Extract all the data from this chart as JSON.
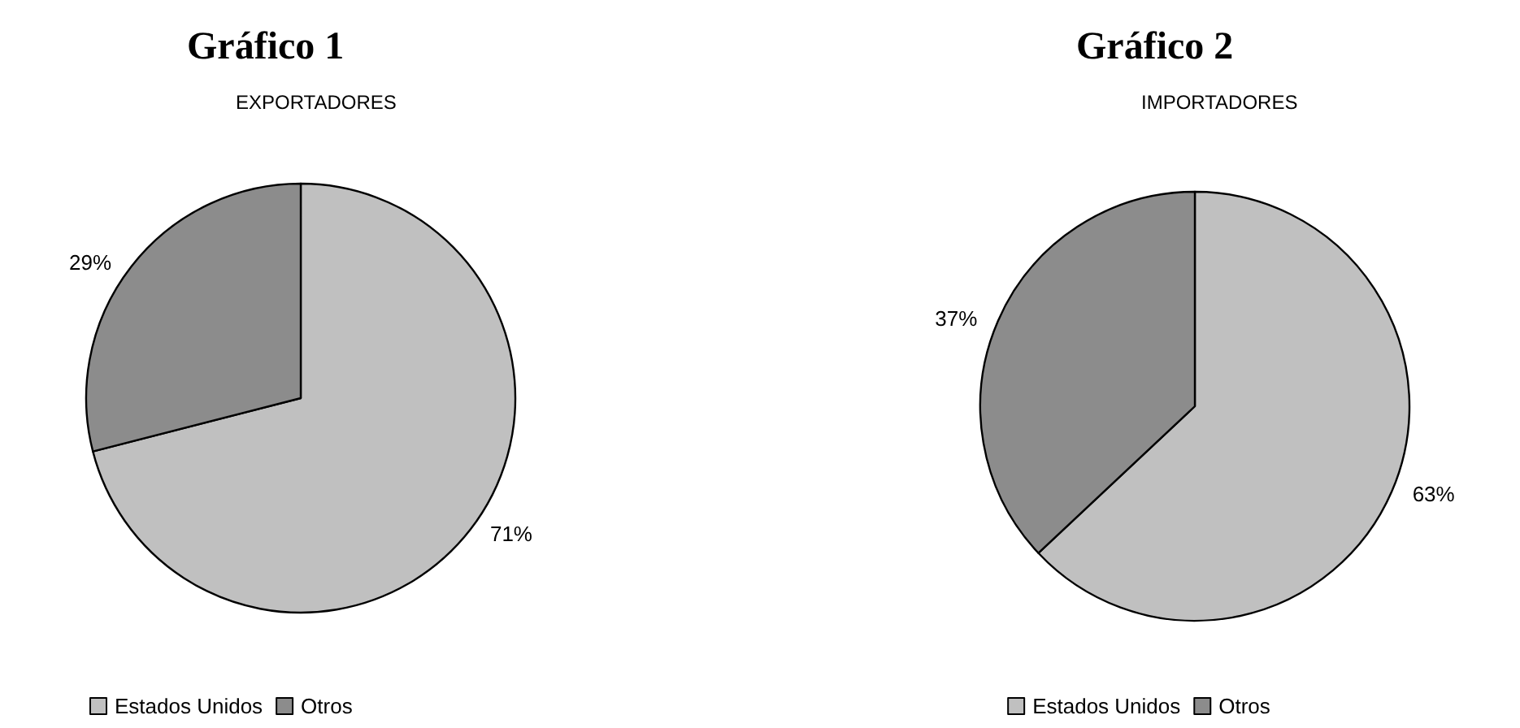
{
  "chart_data": [
    {
      "type": "pie",
      "title": "Gráfico 1",
      "subtitle": "EXPORTADORES",
      "categories": [
        "Estados Unidos",
        "Otros"
      ],
      "values": [
        71,
        29
      ],
      "value_labels": [
        "71%",
        "29%"
      ],
      "colors": [
        "#c0c0c0",
        "#8c8c8c"
      ],
      "legend": "bottom"
    },
    {
      "type": "pie",
      "title": "Gráfico 2",
      "subtitle": "IMPORTADORES",
      "categories": [
        "Estados Unidos",
        "Otros"
      ],
      "values": [
        63,
        37
      ],
      "value_labels": [
        "63%",
        "37%"
      ],
      "colors": [
        "#c0c0c0",
        "#8c8c8c"
      ],
      "legend": "bottom"
    }
  ]
}
